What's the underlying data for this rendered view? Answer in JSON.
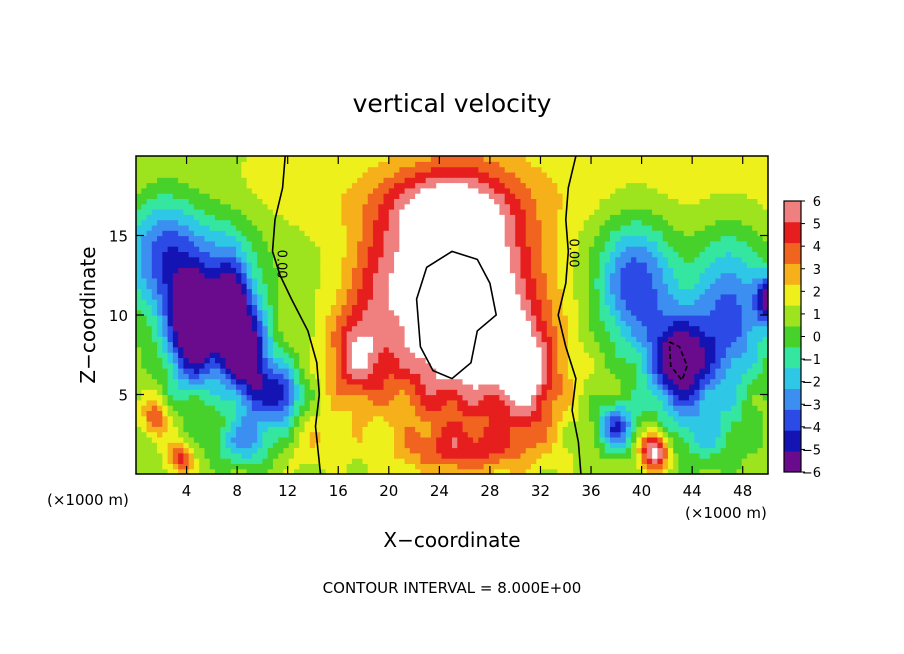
{
  "chart_data": {
    "type": "heatmap",
    "title": "vertical velocity",
    "xlabel": "X−coordinate",
    "ylabel": "Z−coordinate",
    "x_unit_left": "(×1000 m)",
    "x_unit_right": "(×1000 m)",
    "footer": "CONTOUR INTERVAL = 8.000E+00",
    "xlim": [
      0,
      50
    ],
    "ylim": [
      0,
      20
    ],
    "x_ticks": [
      {
        "v": 4,
        "label": "4"
      },
      {
        "v": 8,
        "label": "8"
      },
      {
        "v": 12,
        "label": "12"
      },
      {
        "v": 16,
        "label": "16"
      },
      {
        "v": 20,
        "label": "20"
      },
      {
        "v": 24,
        "label": "24"
      },
      {
        "v": 28,
        "label": "28"
      },
      {
        "v": 32,
        "label": "32"
      },
      {
        "v": 36,
        "label": "36"
      },
      {
        "v": 40,
        "label": "40"
      },
      {
        "v": 44,
        "label": "44"
      },
      {
        "v": 48,
        "label": "48"
      }
    ],
    "y_ticks": [
      {
        "v": 5,
        "label": "5"
      },
      {
        "v": 10,
        "label": "10"
      },
      {
        "v": 15,
        "label": "15"
      }
    ],
    "colorbar": {
      "min": -6,
      "max": 6,
      "labels": [
        {
          "v": 6,
          "label": "6"
        },
        {
          "v": 5,
          "label": "5"
        },
        {
          "v": 4,
          "label": "4"
        },
        {
          "v": 3,
          "label": "3"
        },
        {
          "v": 2,
          "label": "2"
        },
        {
          "v": 1,
          "label": "1"
        },
        {
          "v": 0,
          "label": "0"
        },
        {
          "v": -1,
          "label": "−1"
        },
        {
          "v": -2,
          "label": "−2"
        },
        {
          "v": -3,
          "label": "−3"
        },
        {
          "v": -4,
          "label": "−4"
        },
        {
          "v": -5,
          "label": "−5"
        },
        {
          "v": -6,
          "label": "−6"
        }
      ],
      "colors": [
        "#6a0a8c",
        "#1414b4",
        "#2c4ae6",
        "#3c8ff0",
        "#2ec8e6",
        "#34e6a0",
        "#46d22a",
        "#9ee41e",
        "#eef01c",
        "#f5b01a",
        "#f06420",
        "#e61e1e",
        "#f08080"
      ]
    },
    "contour_labels": [
      {
        "x": 11.2,
        "y": 13.2,
        "label": "0.00"
      },
      {
        "x": 34.3,
        "y": 13.9,
        "label": "0.00"
      }
    ],
    "features": [
      {
        "x": 25.5,
        "y": 12.0,
        "sx": 5.5,
        "sy": 6.5,
        "amp": 6.5
      },
      {
        "x": 25.5,
        "y": 9.0,
        "sx": 6.5,
        "sy": 6.5,
        "amp": 3.0
      },
      {
        "x": 24.0,
        "y": 16.5,
        "sx": 5.0,
        "sy": 2.2,
        "amp": 2.5
      },
      {
        "x": 17.5,
        "y": 7.5,
        "sx": 2.2,
        "sy": 3.0,
        "amp": 4.0
      },
      {
        "x": 19.0,
        "y": 12.5,
        "sx": 2.5,
        "sy": 3.0,
        "amp": 1.5
      },
      {
        "x": 31.0,
        "y": 6.0,
        "sx": 2.5,
        "sy": 3.5,
        "amp": 4.0
      },
      {
        "x": 26.0,
        "y": 1.5,
        "sx": 5.0,
        "sy": 1.5,
        "amp": 2.5
      },
      {
        "x": 14.0,
        "y": 2.0,
        "sx": 3.0,
        "sy": 1.8,
        "amp": 1.0
      },
      {
        "x": 2.0,
        "y": 14.0,
        "sx": 3.0,
        "sy": 4.0,
        "amp": -4.5
      },
      {
        "x": 4.5,
        "y": 9.0,
        "sx": 2.0,
        "sy": 3.5,
        "amp": -7.0
      },
      {
        "x": 7.5,
        "y": 9.5,
        "sx": 1.3,
        "sy": 3.5,
        "amp": -6.5
      },
      {
        "x": 9.2,
        "y": 7.0,
        "sx": 1.4,
        "sy": 3.5,
        "amp": -6.0
      },
      {
        "x": 11.5,
        "y": 5.0,
        "sx": 1.5,
        "sy": 2.0,
        "amp": -5.5
      },
      {
        "x": 6.5,
        "y": 12.0,
        "sx": 3.5,
        "sy": 5.0,
        "amp": -3.0
      },
      {
        "x": 8.5,
        "y": 2.0,
        "sx": 2.5,
        "sy": 1.5,
        "amp": -3.0
      },
      {
        "x": 1.5,
        "y": 3.5,
        "sx": 1.0,
        "sy": 1.3,
        "amp": 3.0
      },
      {
        "x": 3.5,
        "y": 1.0,
        "sx": 1.0,
        "sy": 1.0,
        "amp": 3.5
      },
      {
        "x": 39.5,
        "y": 12.0,
        "sx": 3.0,
        "sy": 4.0,
        "amp": -5.0
      },
      {
        "x": 43.0,
        "y": 7.0,
        "sx": 2.5,
        "sy": 3.0,
        "amp": -7.0
      },
      {
        "x": 47.0,
        "y": 10.0,
        "sx": 3.0,
        "sy": 5.0,
        "amp": -4.5
      },
      {
        "x": 49.8,
        "y": 11.0,
        "sx": 0.8,
        "sy": 1.5,
        "amp": -5.0
      },
      {
        "x": 38.0,
        "y": 3.0,
        "sx": 1.5,
        "sy": 1.5,
        "amp": -5.0
      },
      {
        "x": 41.0,
        "y": 1.5,
        "sx": 1.1,
        "sy": 1.2,
        "amp": 6.0
      },
      {
        "x": 45.0,
        "y": 2.5,
        "sx": 3.0,
        "sy": 2.0,
        "amp": -2.0
      }
    ]
  }
}
